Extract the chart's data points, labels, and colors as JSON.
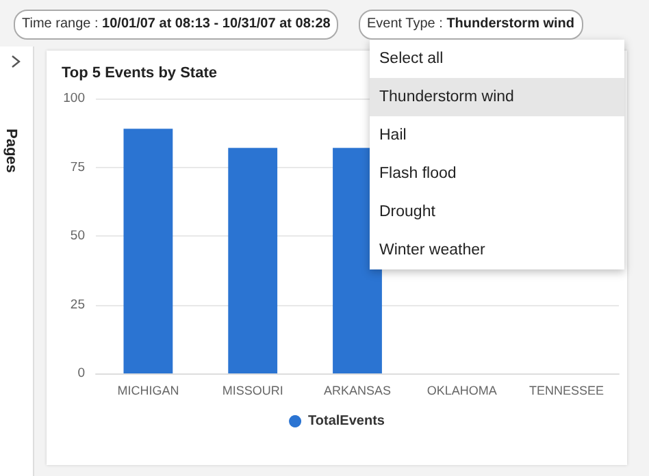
{
  "chart_data": {
    "type": "bar",
    "title": "Top 5 Events by State",
    "categories": [
      "MICHIGAN",
      "MISSOURI",
      "ARKANSAS",
      "OKLAHOMA",
      "TENNESSEE"
    ],
    "series": [
      {
        "name": "TotalEvents",
        "color": "#2b74d2",
        "values": [
          89,
          82,
          82,
          null,
          null
        ]
      }
    ],
    "ylim": [
      0,
      100
    ],
    "yticks": [
      0,
      25,
      50,
      75,
      100
    ],
    "grid": "y",
    "legend": "bottom",
    "annotations": [
      "Time range : 10/01/07 at 08:13 - 10/31/07 at 08:28",
      "Event Type : Thunderstorm wind",
      "Pages",
      "Select all",
      "Thunderstorm wind",
      "Hail",
      "Flash flood",
      "Drought",
      "Winter weather"
    ]
  }
}
